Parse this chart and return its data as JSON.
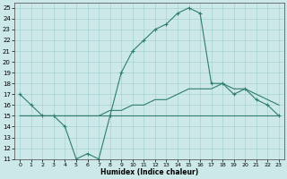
{
  "xlabel": "Humidex (Indice chaleur)",
  "xlim": [
    -0.5,
    23.5
  ],
  "ylim": [
    11,
    25.5
  ],
  "xticks": [
    0,
    1,
    2,
    3,
    4,
    5,
    6,
    7,
    8,
    9,
    10,
    11,
    12,
    13,
    14,
    15,
    16,
    17,
    18,
    19,
    20,
    21,
    22,
    23
  ],
  "yticks": [
    11,
    12,
    13,
    14,
    15,
    16,
    17,
    18,
    19,
    20,
    21,
    22,
    23,
    24,
    25
  ],
  "line_color": "#2e7d6e",
  "bg_color": "#cce8e8",
  "line1_x": [
    0,
    1,
    2,
    3,
    4,
    5,
    6,
    7,
    8,
    9,
    10,
    11,
    12,
    13,
    14,
    15,
    16,
    17,
    18,
    19,
    20,
    21,
    22,
    23
  ],
  "line1_y": [
    17,
    16,
    15,
    15,
    14,
    11,
    11.5,
    11,
    15,
    19,
    21,
    22,
    23,
    23.5,
    24.5,
    25,
    24.5,
    18,
    18,
    17,
    17.5,
    16.5,
    16,
    15
  ],
  "line2_x": [
    0,
    1,
    2,
    3,
    4,
    5,
    6,
    7,
    8,
    9,
    10,
    11,
    12,
    13,
    14,
    15,
    16,
    17,
    18,
    19,
    20,
    21,
    22,
    23
  ],
  "line2_y": [
    15,
    15,
    15,
    15,
    15,
    15,
    15,
    15,
    15,
    15,
    15,
    15,
    15,
    15,
    15,
    15,
    15,
    15,
    15,
    15,
    15,
    15,
    15,
    15
  ],
  "line3_x": [
    0,
    1,
    2,
    3,
    4,
    5,
    6,
    7,
    8,
    9,
    10,
    11,
    12,
    13,
    14,
    15,
    16,
    17,
    18,
    19,
    20,
    21,
    22,
    23
  ],
  "line3_y": [
    15,
    15,
    15,
    15,
    15,
    15,
    15,
    15,
    15.5,
    15.5,
    16,
    16,
    16.5,
    16.5,
    17,
    17.5,
    17.5,
    17.5,
    18,
    17.5,
    17.5,
    17,
    16.5,
    16
  ]
}
